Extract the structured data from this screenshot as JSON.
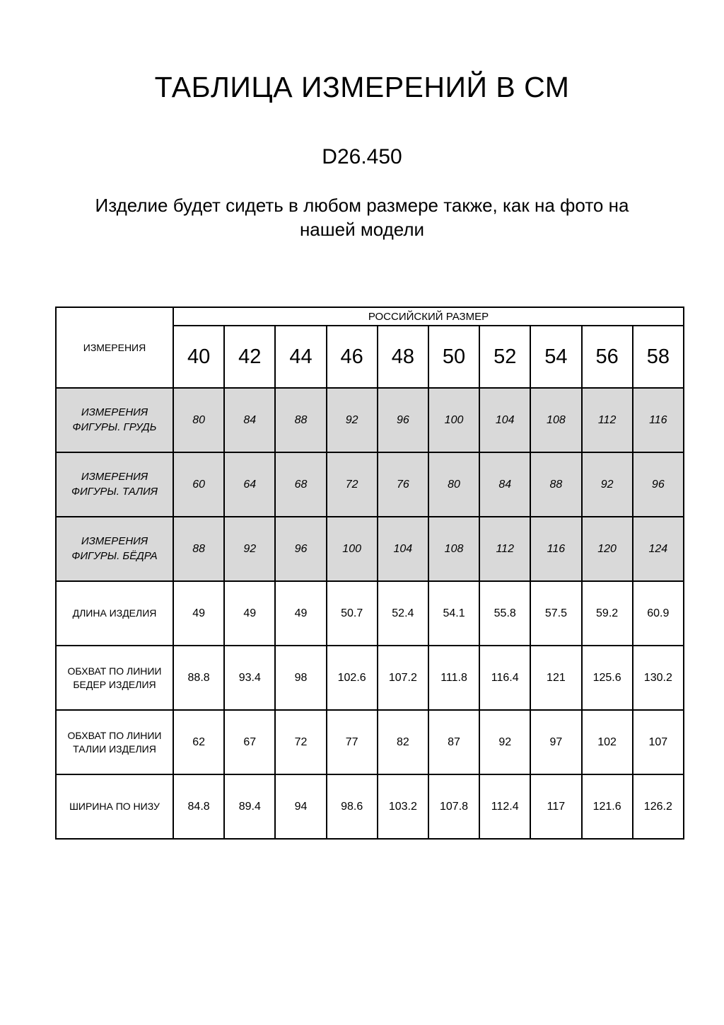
{
  "page": {
    "title": "ТАБЛИЦА ИЗМЕРЕНИЙ В СМ",
    "product_code": "D26.450",
    "note": "Изделие будет сидеть в любом размере также, как на фото на нашей модели"
  },
  "table": {
    "corner_header": "ИЗМЕРЕНИЯ",
    "group_header": "РОССИЙСКИЙ РАЗМЕР",
    "sizes": [
      "40",
      "42",
      "44",
      "46",
      "48",
      "50",
      "52",
      "54",
      "56",
      "58"
    ],
    "rows": [
      {
        "label": "ИЗМЕРЕНИЯ ФИГУРЫ. ГРУДЬ",
        "shaded": true,
        "values": [
          "80",
          "84",
          "88",
          "92",
          "96",
          "100",
          "104",
          "108",
          "112",
          "116"
        ]
      },
      {
        "label": "ИЗМЕРЕНИЯ ФИГУРЫ. ТАЛИЯ",
        "shaded": true,
        "values": [
          "60",
          "64",
          "68",
          "72",
          "76",
          "80",
          "84",
          "88",
          "92",
          "96"
        ]
      },
      {
        "label": "ИЗМЕРЕНИЯ ФИГУРЫ. БЁДРА",
        "shaded": true,
        "values": [
          "88",
          "92",
          "96",
          "100",
          "104",
          "108",
          "112",
          "116",
          "120",
          "124"
        ]
      },
      {
        "label": "ДЛИНА ИЗДЕЛИЯ",
        "shaded": false,
        "values": [
          "49",
          "49",
          "49",
          "50.7",
          "52.4",
          "54.1",
          "55.8",
          "57.5",
          "59.2",
          "60.9"
        ]
      },
      {
        "label": "ОБХВАТ ПО ЛИНИИ БЕДЕР ИЗДЕЛИЯ",
        "shaded": false,
        "values": [
          "88.8",
          "93.4",
          "98",
          "102.6",
          "107.2",
          "111.8",
          "116.4",
          "121",
          "125.6",
          "130.2"
        ]
      },
      {
        "label": "ОБХВАТ ПО ЛИНИИ ТАЛИИ ИЗДЕЛИЯ",
        "shaded": false,
        "values": [
          "62",
          "67",
          "72",
          "77",
          "82",
          "87",
          "92",
          "97",
          "102",
          "107"
        ]
      },
      {
        "label": "ШИРИНА ПО НИЗУ",
        "shaded": false,
        "values": [
          "84.8",
          "89.4",
          "94",
          "98.6",
          "103.2",
          "107.8",
          "112.4",
          "117",
          "121.6",
          "126.2"
        ]
      }
    ],
    "colors": {
      "shaded_row_bg": "#d9d9d9",
      "border": "#000000",
      "text": "#000000",
      "background": "#ffffff"
    }
  }
}
